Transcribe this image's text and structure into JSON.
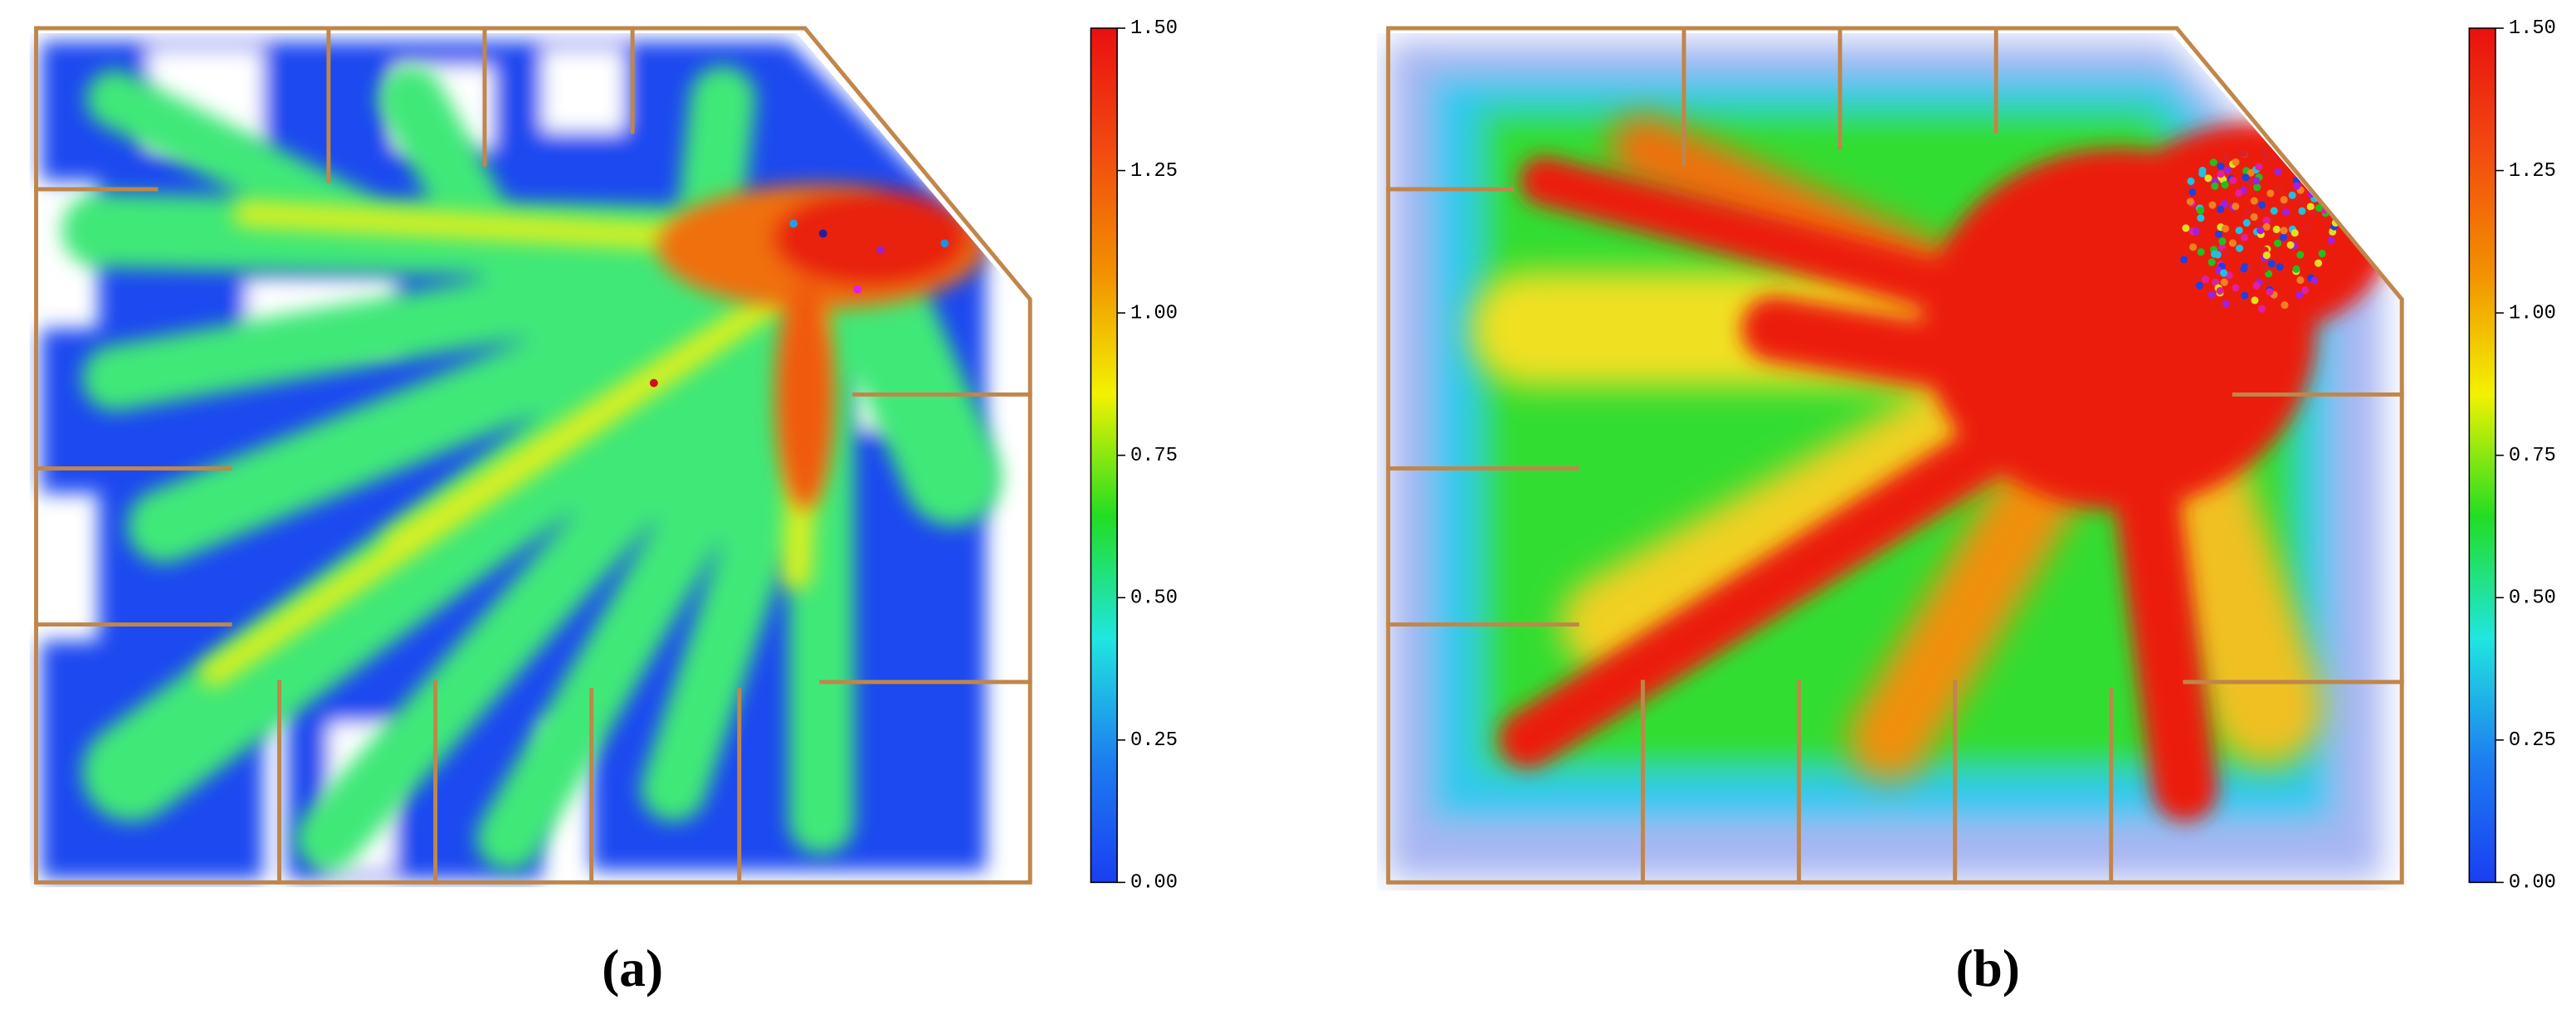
{
  "chart_data": [
    {
      "type": "heatmap",
      "label": "(a)",
      "zlim": [
        0,
        1.5
      ],
      "zticks": [
        {
          "value": 0,
          "label": "0.00"
        },
        {
          "value": 0.25,
          "label": "0.25"
        },
        {
          "value": 0.5,
          "label": "0.50"
        },
        {
          "value": 0.75,
          "label": "0.75"
        },
        {
          "value": 1,
          "label": "1.00"
        },
        {
          "value": 1.25,
          "label": "1.25"
        },
        {
          "value": 1.5,
          "label": "1.50"
        }
      ],
      "colormap": [
        "#1a3ef2",
        "#1d7ef0",
        "#20e6e0",
        "#22dd22",
        "#f2f200",
        "#f29000",
        "#f24a10",
        "#ea1010"
      ]
    },
    {
      "type": "heatmap",
      "label": "(b)",
      "zlim": [
        0,
        1.5
      ],
      "zticks": [
        {
          "value": 0,
          "label": "0.00"
        },
        {
          "value": 0.25,
          "label": "0.25"
        },
        {
          "value": 0.5,
          "label": "0.50"
        },
        {
          "value": 0.75,
          "label": "0.75"
        },
        {
          "value": 1,
          "label": "1.00"
        },
        {
          "value": 1.25,
          "label": "1.25"
        },
        {
          "value": 1.5,
          "label": "1.50"
        }
      ],
      "colormap": [
        "#1a3ef2",
        "#1d7ef0",
        "#20e6e0",
        "#22dd22",
        "#f2f200",
        "#f29000",
        "#f24a10",
        "#ea1010"
      ]
    }
  ]
}
